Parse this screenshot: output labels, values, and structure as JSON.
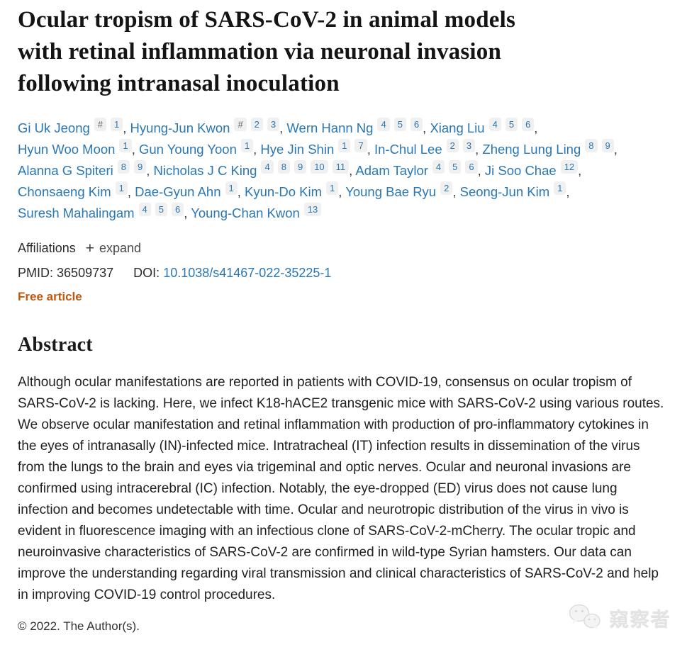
{
  "header": {
    "title_lines": [
      "Ocular tropism of SARS-CoV-2 in animal models",
      "with retinal inflammation via neuronal invasion",
      "following intranasal inoculation"
    ]
  },
  "authors": [
    {
      "name": "Gi Uk Jeong",
      "sups": [
        "#",
        "1"
      ]
    },
    {
      "name": "Hyung-Jun Kwon",
      "sups": [
        "#",
        "2",
        "3"
      ]
    },
    {
      "name": "Wern Hann Ng",
      "sups": [
        "4",
        "5",
        "6"
      ]
    },
    {
      "name": "Xiang Liu",
      "sups": [
        "4",
        "5",
        "6"
      ]
    },
    {
      "name": "Hyun Woo Moon",
      "sups": [
        "1"
      ]
    },
    {
      "name": "Gun Young Yoon",
      "sups": [
        "1"
      ]
    },
    {
      "name": "Hye Jin Shin",
      "sups": [
        "1",
        "7"
      ]
    },
    {
      "name": "In-Chul Lee",
      "sups": [
        "2",
        "3"
      ]
    },
    {
      "name": "Zheng Lung Ling",
      "sups": [
        "8",
        "9"
      ]
    },
    {
      "name": "Alanna G Spiteri",
      "sups": [
        "8",
        "9"
      ]
    },
    {
      "name": "Nicholas J C King",
      "sups": [
        "4",
        "8",
        "9",
        "10",
        "11"
      ]
    },
    {
      "name": "Adam Taylor",
      "sups": [
        "4",
        "5",
        "6"
      ]
    },
    {
      "name": "Ji Soo Chae",
      "sups": [
        "12"
      ]
    },
    {
      "name": "Chonsaeng Kim",
      "sups": [
        "1"
      ]
    },
    {
      "name": "Dae-Gyun Ahn",
      "sups": [
        "1"
      ]
    },
    {
      "name": "Kyun-Do Kim",
      "sups": [
        "1"
      ]
    },
    {
      "name": "Young Bae Ryu",
      "sups": [
        "2"
      ]
    },
    {
      "name": "Seong-Jun Kim",
      "sups": [
        "1"
      ]
    },
    {
      "name": "Suresh Mahalingam",
      "sups": [
        "4",
        "5",
        "6"
      ]
    },
    {
      "name": "Young-Chan Kwon",
      "sups": [
        "13"
      ]
    }
  ],
  "affiliations": {
    "label": "Affiliations",
    "expand_label": "expand",
    "plus_glyph": "+"
  },
  "ids": {
    "pmid_label": "PMID:",
    "pmid_value": "36509737",
    "doi_label": "DOI:",
    "doi_value": "10.1038/s41467-022-35225-1"
  },
  "free_article_label": "Free article",
  "abstract": {
    "heading": "Abstract",
    "text": "Although ocular manifestations are reported in patients with COVID-19, consensus on ocular tropism of SARS-CoV-2 is lacking. Here, we infect K18-hACE2 transgenic mice with SARS-CoV-2 using various routes. We observe ocular manifestation and retinal inflammation with production of pro-inflammatory cytokines in the eyes of intranasally (IN)-infected mice. Intratracheal (IT) infection results in dissemination of the virus from the lungs to the brain and eyes via trigeminal and optic nerves. Ocular and neuronal invasions are confirmed using intracerebral (IC) infection. Notably, the eye-dropped (ED) virus does not cause lung infection and becomes undetectable with time. Ocular and neurotropic distribution of the virus in vivo is evident in fluorescence imaging with an infectious clone of SARS-CoV-2-mCherry. The ocular tropic and neuroinvasive characteristics of SARS-CoV-2 are confirmed in wild-type Syrian hamsters. Our data can improve the understanding regarding viral transmission and clinical characteristics of SARS-CoV-2 and help in improving COVID-19 control procedures."
  },
  "footer": {
    "copyright": "© 2022. The Author(s)."
  },
  "watermark": {
    "text": "窺察者",
    "icon": "wechat-icon"
  },
  "colors": {
    "link_blue": "#2977b5",
    "free_article_orange": "#c2570e",
    "superscript_badge_bg": "#f0f0f0",
    "superscript_number": "#2977b5",
    "superscript_hash": "#5f6368"
  }
}
